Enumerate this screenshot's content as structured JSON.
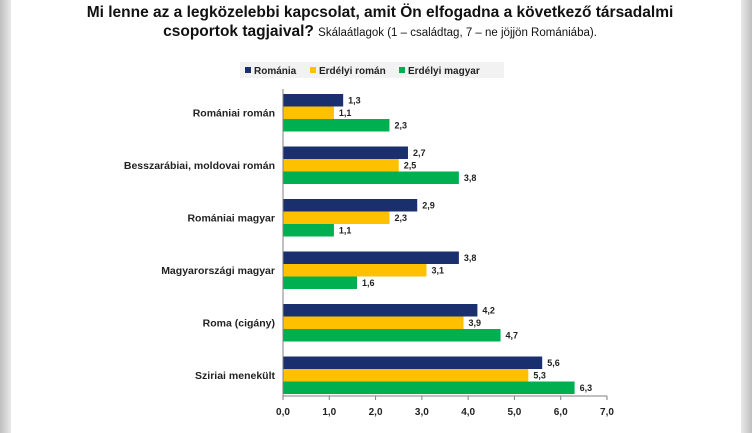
{
  "title_main": "Mi lenne az a legközelebbi kapcsolat, amit Ön elfogadna a következő társadalmi csoportok tagjaival?",
  "title_sub": "Skálaátlagok (1 – családtag, 7 – ne jöjjön Romániába).",
  "chart_data": {
    "type": "bar",
    "orientation": "horizontal",
    "categories": [
      "Romániai román",
      "Besszarábiai, moldovai román",
      "Romániai magyar",
      "Magyarországi magyar",
      "Roma (cigány)",
      "Sziriai menekült"
    ],
    "series": [
      {
        "name": "Románia",
        "color": "#1a2f6e",
        "values": [
          1.3,
          2.7,
          2.9,
          3.8,
          4.2,
          5.6
        ]
      },
      {
        "name": "Erdélyi román",
        "color": "#ffc000",
        "values": [
          1.1,
          2.5,
          2.3,
          3.1,
          3.9,
          5.3
        ]
      },
      {
        "name": "Erdélyi magyar",
        "color": "#00b050",
        "values": [
          2.3,
          3.8,
          1.1,
          1.6,
          4.7,
          6.3
        ]
      }
    ],
    "data_labels": [
      [
        "1,3",
        "2,7",
        "2,9",
        "3,8",
        "4,2",
        "5,6"
      ],
      [
        "1,1",
        "2,5",
        "2,3",
        "3,1",
        "3,9",
        "5,3"
      ],
      [
        "2,3",
        "3,8",
        "1,1",
        "1,6",
        "4,7",
        "6,3"
      ]
    ],
    "xlim": [
      0,
      7
    ],
    "xticks": [
      0,
      1,
      2,
      3,
      4,
      5,
      6,
      7
    ],
    "xtick_labels": [
      "0,0",
      "1,0",
      "2,0",
      "3,0",
      "4,0",
      "5,0",
      "6,0",
      "7,0"
    ],
    "legend_position": "top",
    "grid": false
  }
}
